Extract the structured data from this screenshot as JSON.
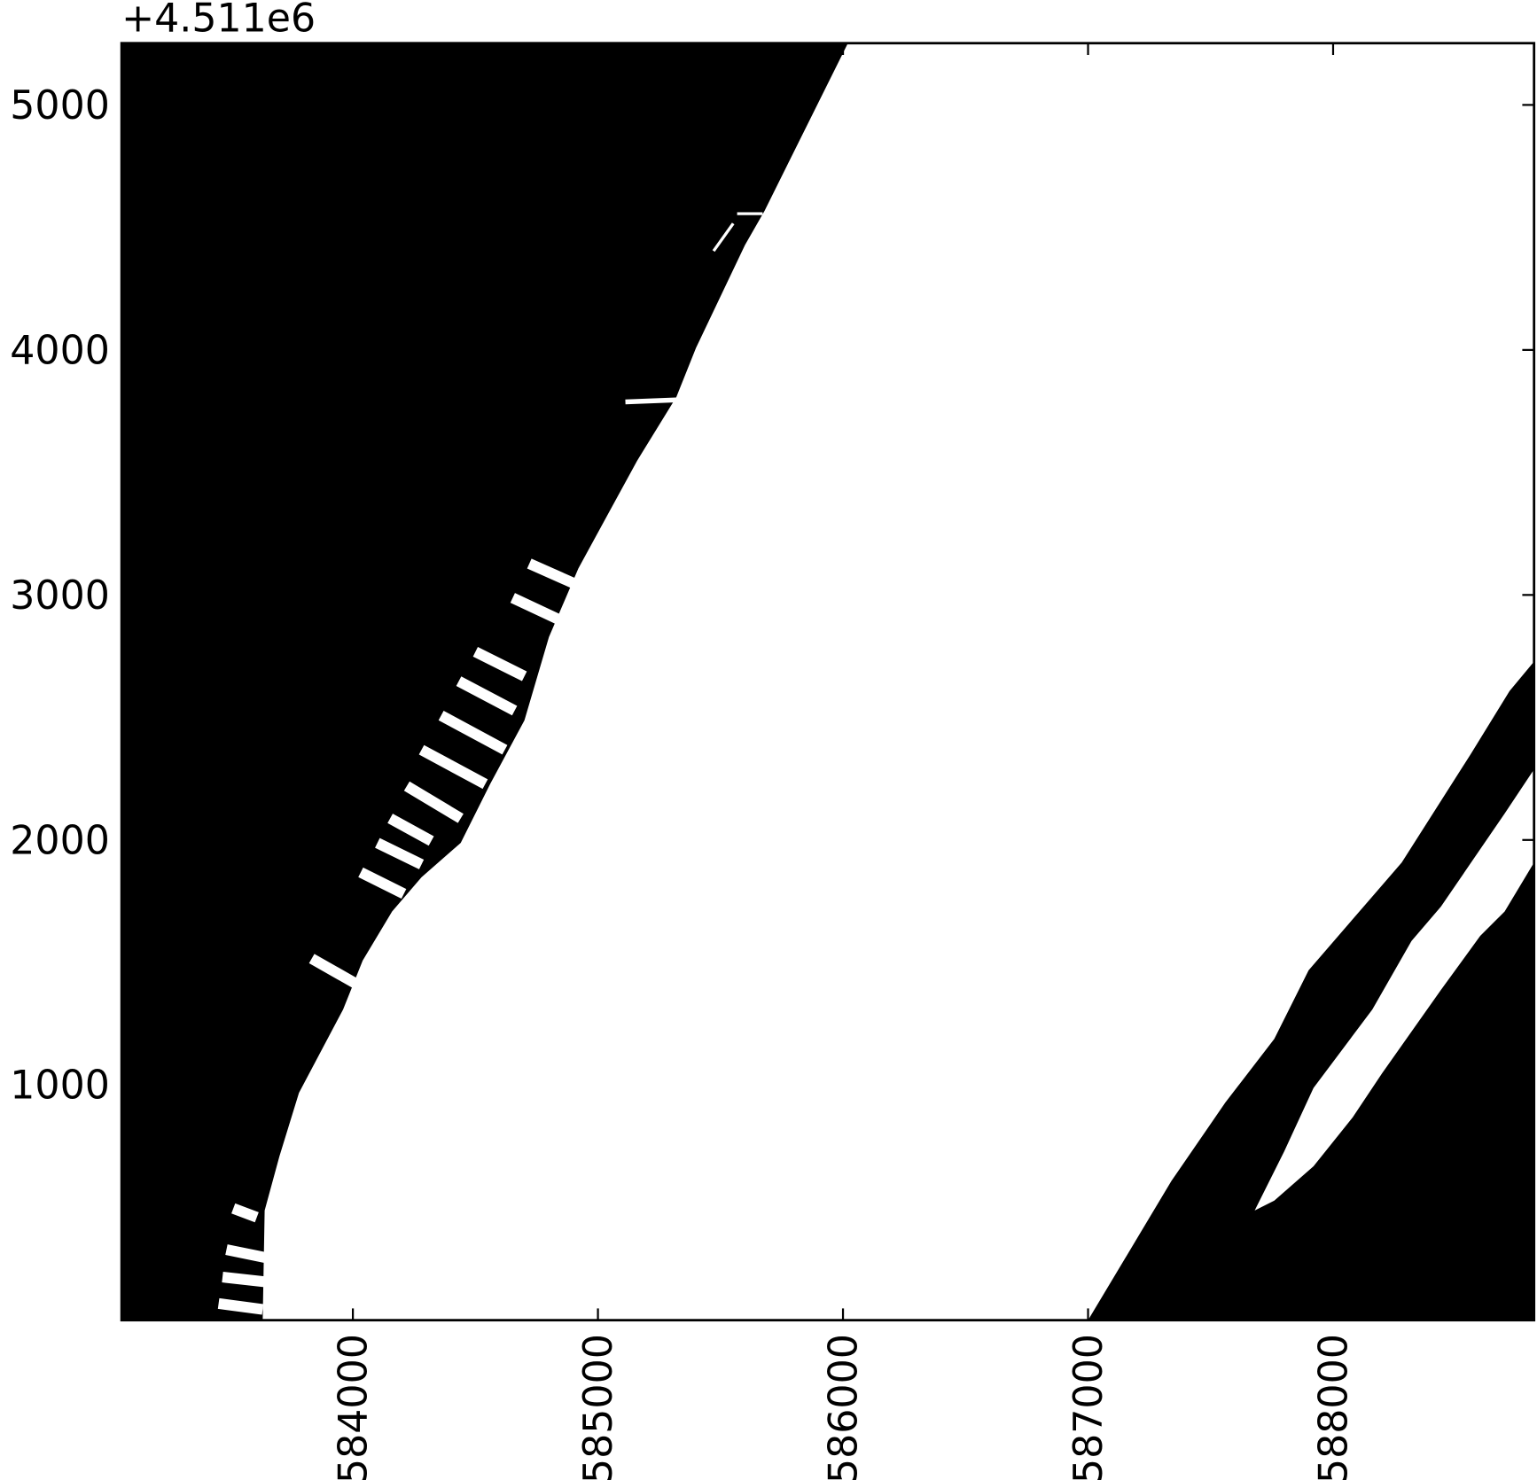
{
  "chart_data": {
    "type": "map",
    "offset_label": "+4.511e6",
    "xlim": [
      583056,
      588820
    ],
    "ylim": [
      40,
      5252
    ],
    "xticks": [
      584000,
      585000,
      586000,
      587000,
      588000
    ],
    "yticks": [
      1000,
      2000,
      3000,
      4000,
      5000
    ]
  }
}
